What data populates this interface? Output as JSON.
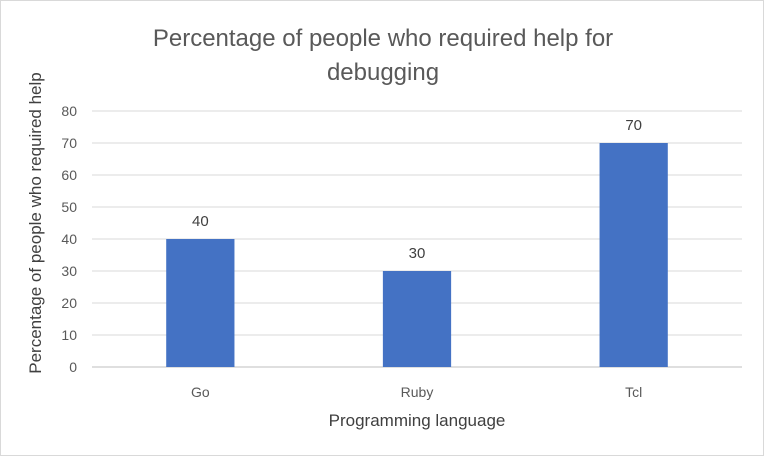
{
  "chart_data": {
    "type": "bar",
    "title_lines": [
      "Percentage of people who required help for",
      "debugging"
    ],
    "xlabel": "Programming language",
    "ylabel": "Percentage of people who required help",
    "categories": [
      "Go",
      "Ruby",
      "Tcl"
    ],
    "values": [
      40,
      30,
      70
    ],
    "ylim": [
      0,
      80
    ],
    "yticks": [
      0,
      10,
      20,
      30,
      40,
      50,
      60,
      70,
      80
    ],
    "grid": true,
    "legend": "none",
    "bar_color": "#4472c4"
  }
}
